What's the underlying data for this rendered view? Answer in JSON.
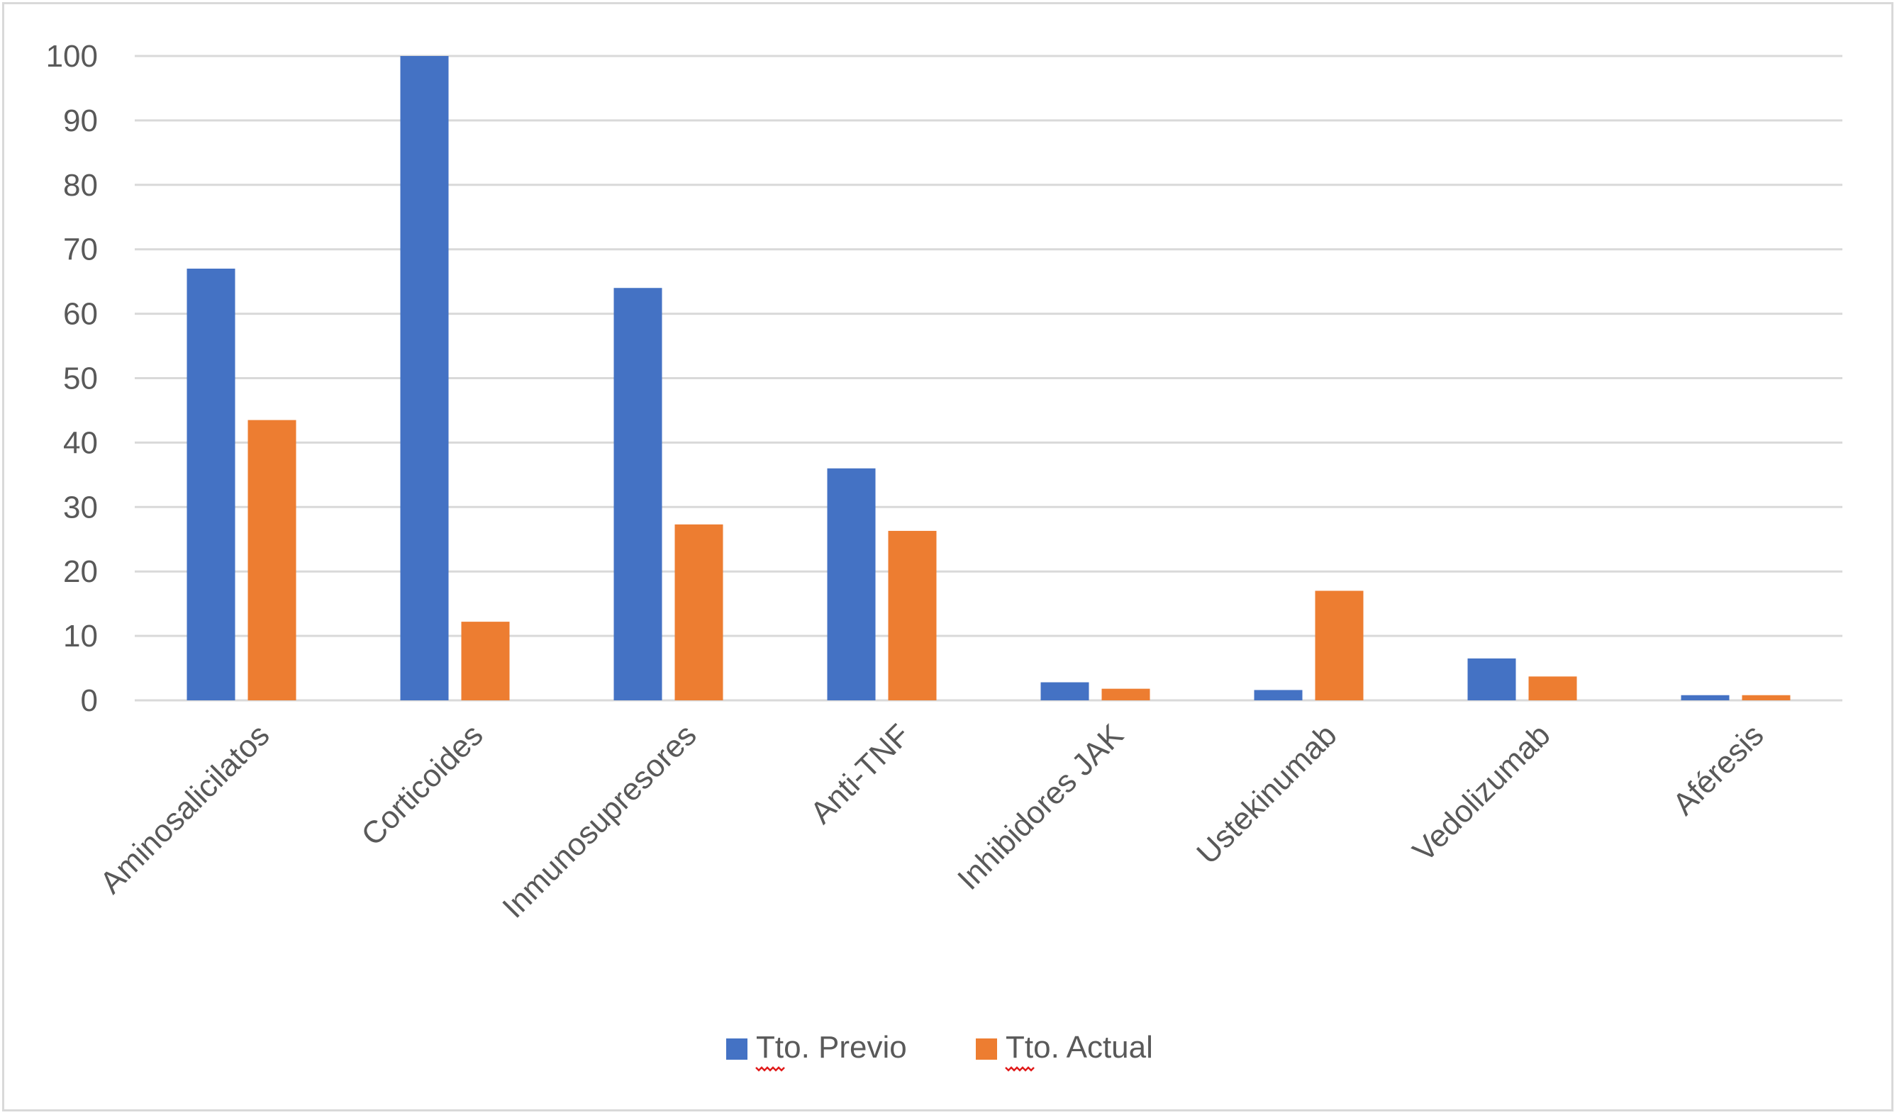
{
  "chart_data": {
    "type": "bar",
    "title": "",
    "xlabel": "",
    "ylabel": "",
    "ylim": [
      0,
      100
    ],
    "yticks": [
      0,
      10,
      20,
      30,
      40,
      50,
      60,
      70,
      80,
      90,
      100
    ],
    "grid": true,
    "legend_position": "bottom",
    "categories": [
      "Aminosalicilatos",
      "Corticoides",
      "Inmunosupresores",
      "Anti-TNF",
      "Inhibidores JAK",
      "Ustekinumab",
      "Vedolizumab",
      "Aféresis"
    ],
    "series": [
      {
        "name": "Tto. Previo",
        "color": "#4472c4",
        "values": [
          67,
          100,
          64,
          36,
          2.8,
          1.6,
          6.5,
          0.8
        ]
      },
      {
        "name": "Tto. Actual",
        "color": "#ed7d31",
        "values": [
          43.5,
          12.2,
          27.3,
          26.3,
          1.8,
          17,
          3.7,
          0.8
        ]
      }
    ]
  }
}
